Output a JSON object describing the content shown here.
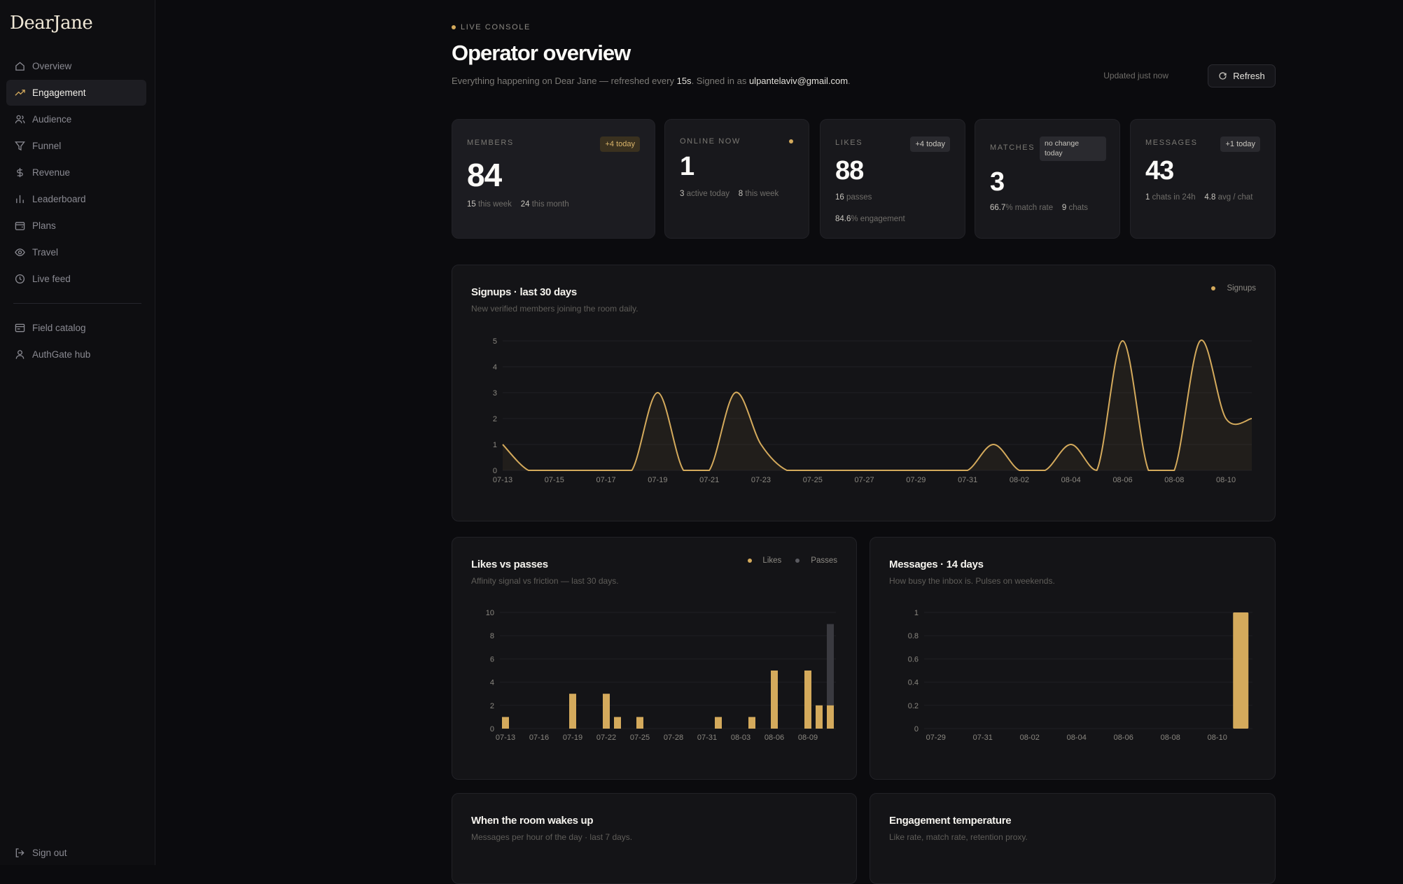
{
  "app": {
    "logo": "DearJane"
  },
  "sidebar": {
    "items": [
      {
        "label": "Overview",
        "icon": "home-icon"
      },
      {
        "label": "Engagement",
        "icon": "trending-up-icon",
        "active": true
      },
      {
        "label": "Audience",
        "icon": "users-icon"
      },
      {
        "label": "Funnel",
        "icon": "filter-icon"
      },
      {
        "label": "Revenue",
        "icon": "dollar-icon"
      },
      {
        "label": "Leaderboard",
        "icon": "bar-chart-icon"
      },
      {
        "label": "Plans",
        "icon": "wallet-icon"
      },
      {
        "label": "Travel",
        "icon": "compass-icon"
      },
      {
        "label": "Live feed",
        "icon": "clock-icon"
      }
    ],
    "secondary": [
      {
        "label": "Field catalog",
        "icon": "catalog-icon"
      },
      {
        "label": "AuthGate hub",
        "icon": "user-icon"
      }
    ],
    "signout": {
      "label": "Sign out",
      "icon": "sign-out-icon"
    }
  },
  "header": {
    "eyebrow": "LIVE CONSOLE",
    "title": "Operator overview",
    "subtitle_pre": "Everything happening on Dear Jane — refreshed every ",
    "refresh_interval": "15s",
    "subtitle_mid": ". Signed in as ",
    "email": "ulpantelaviv@gmail.com",
    "subtitle_end": ".",
    "updated": "Updated just now",
    "refresh_label": "Refresh"
  },
  "colors": {
    "accent": "#d4aa5c",
    "passes": "#3a3a40",
    "background": "#0b0b0e",
    "card": "#18181c"
  },
  "stats": {
    "members": {
      "label": "MEMBERS",
      "value": "84",
      "badge": "+4 today",
      "f1v": "15",
      "f1t": " this week",
      "f2v": "24",
      "f2t": " this month"
    },
    "online": {
      "label": "ONLINE NOW",
      "value": "1",
      "f1v": "3",
      "f1t": " active today",
      "f2v": "8",
      "f2t": " this week"
    },
    "likes": {
      "label": "LIKES",
      "value": "88",
      "badge": "+4 today",
      "f1v": "16",
      "f1t": " passes",
      "f2v": "84.6",
      "f2t": "% engagement"
    },
    "matches": {
      "label": "MATCHES",
      "value": "3",
      "badge_l1": "no change",
      "badge_l2": "today",
      "f1v": "66.7",
      "f1t": "% match rate",
      "f2v": "9",
      "f2t": " chats"
    },
    "messages": {
      "label": "MESSAGES",
      "value": "43",
      "badge": "+1 today",
      "f1v": "1",
      "f1t": " chats in 24h",
      "f2v": "4.8",
      "f2t": " avg / chat"
    }
  },
  "panels": {
    "signups": {
      "title": "Signups · last 30 days",
      "subtitle": "New verified members joining the room daily.",
      "legend": "Signups"
    },
    "likes": {
      "title": "Likes vs passes",
      "subtitle": "Affinity signal vs friction — last 30 days.",
      "legend_likes": "Likes",
      "legend_passes": "Passes"
    },
    "messages": {
      "title": "Messages · 14 days",
      "subtitle": "How busy the inbox is. Pulses on weekends."
    },
    "wakes": {
      "title": "When the room wakes up",
      "subtitle": "Messages per hour of the day · last 7 days."
    },
    "temperature": {
      "title": "Engagement temperature",
      "subtitle": "Like rate, match rate, retention proxy."
    }
  },
  "chart_data": [
    {
      "type": "area",
      "title": "Signups · last 30 days",
      "x": [
        "07-13",
        "07-14",
        "07-15",
        "07-16",
        "07-17",
        "07-18",
        "07-19",
        "07-20",
        "07-21",
        "07-22",
        "07-23",
        "07-24",
        "07-25",
        "07-26",
        "07-27",
        "07-28",
        "07-29",
        "07-30",
        "07-31",
        "08-01",
        "08-02",
        "08-03",
        "08-04",
        "08-05",
        "08-06",
        "08-07",
        "08-08",
        "08-09",
        "08-10",
        "08-11"
      ],
      "x_ticks": [
        "07-13",
        "07-15",
        "07-17",
        "07-19",
        "07-21",
        "07-23",
        "07-25",
        "07-27",
        "07-29",
        "07-31",
        "08-02",
        "08-04",
        "08-06",
        "08-08",
        "08-10"
      ],
      "series": [
        {
          "name": "Signups",
          "values": [
            1,
            0,
            0,
            0,
            0,
            0,
            3,
            0,
            0,
            3,
            1,
            0,
            0,
            0,
            0,
            0,
            0,
            0,
            0,
            1,
            0,
            0,
            1,
            0,
            5,
            0,
            0,
            5,
            2,
            2
          ]
        }
      ],
      "ylim": [
        0,
        5
      ],
      "y_ticks": [
        0,
        1,
        2,
        3,
        4,
        5
      ]
    },
    {
      "type": "bar",
      "title": "Likes vs passes",
      "x": [
        "07-13",
        "07-14",
        "07-15",
        "07-16",
        "07-17",
        "07-18",
        "07-19",
        "07-20",
        "07-21",
        "07-22",
        "07-23",
        "07-24",
        "07-25",
        "07-26",
        "07-27",
        "07-28",
        "07-29",
        "07-30",
        "07-31",
        "08-01",
        "08-02",
        "08-03",
        "08-04",
        "08-05",
        "08-06",
        "08-07",
        "08-08",
        "08-09",
        "08-10",
        "08-11"
      ],
      "x_ticks": [
        "07-13",
        "07-16",
        "07-19",
        "07-22",
        "07-25",
        "07-28",
        "07-31",
        "08-03",
        "08-06",
        "08-09"
      ],
      "series": [
        {
          "name": "Likes",
          "values": [
            1,
            0,
            0,
            0,
            0,
            0,
            3,
            0,
            0,
            3,
            1,
            0,
            1,
            0,
            0,
            0,
            0,
            0,
            0,
            1,
            0,
            0,
            1,
            0,
            5,
            0,
            0,
            5,
            2,
            2
          ]
        },
        {
          "name": "Passes",
          "values": [
            0,
            0,
            0,
            0,
            0,
            0,
            0,
            0,
            0,
            0,
            0,
            0,
            0,
            0,
            0,
            0,
            0,
            0,
            0,
            0,
            0,
            0,
            0,
            0,
            0,
            0,
            0,
            0,
            0,
            9
          ]
        }
      ],
      "ylim": [
        0,
        10
      ],
      "y_ticks": [
        0,
        2,
        4,
        6,
        8,
        10
      ]
    },
    {
      "type": "bar",
      "title": "Messages · 14 days",
      "x": [
        "07-29",
        "07-30",
        "07-31",
        "08-01",
        "08-02",
        "08-03",
        "08-04",
        "08-05",
        "08-06",
        "08-07",
        "08-08",
        "08-09",
        "08-10",
        "08-11"
      ],
      "x_ticks": [
        "07-29",
        "07-31",
        "08-02",
        "08-04",
        "08-06",
        "08-08",
        "08-10"
      ],
      "series": [
        {
          "name": "Messages",
          "values": [
            0,
            0,
            0,
            0,
            0,
            0,
            0,
            0,
            0,
            0,
            0,
            0,
            0,
            1
          ]
        }
      ],
      "ylim": [
        0,
        1
      ],
      "y_ticks": [
        0,
        0.2,
        0.4,
        0.6,
        0.8,
        1
      ]
    }
  ]
}
